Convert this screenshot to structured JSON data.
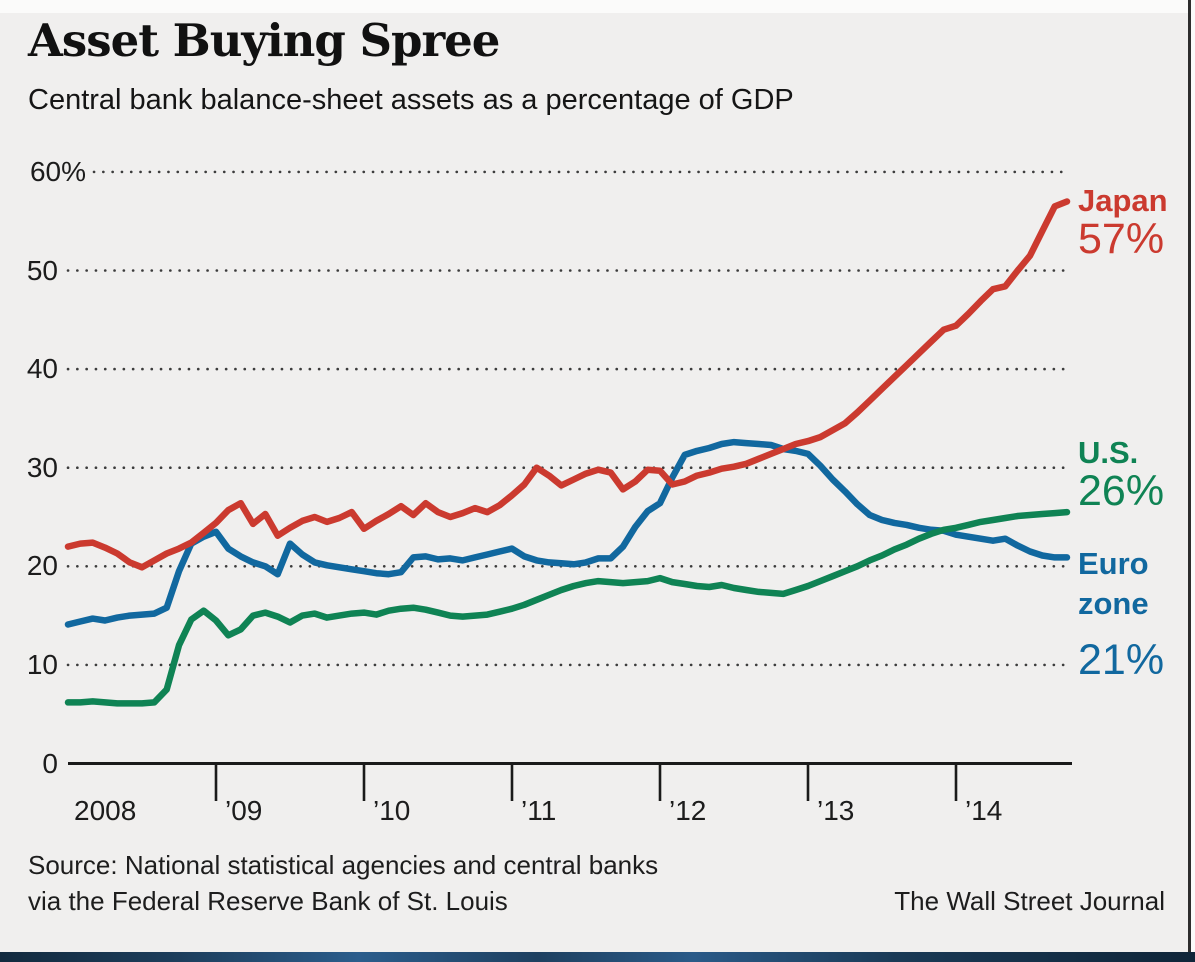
{
  "header": {
    "title": "Asset Buying Spree",
    "subtitle": "Central bank balance-sheet assets as a percentage of GDP"
  },
  "footer": {
    "source_line1": "Source: National statistical agencies and central banks",
    "source_line2": "via the Federal Reserve Bank of St. Louis",
    "credit": "The Wall Street Journal"
  },
  "colors": {
    "japan": "#cb3a2f",
    "us": "#0f8354",
    "eurozone": "#11689f",
    "background": "#f0efee",
    "axis": "#1a1a1a",
    "grid_dots": "#3c3c3c",
    "bottom_bar": "#1d3e5c"
  },
  "chart_data": {
    "type": "line",
    "title": "Asset Buying Spree",
    "subtitle": "Central bank balance-sheet assets as a percentage of GDP",
    "frequency": "monthly",
    "period": "Jan 2008 - Oct 2014",
    "x_tick_labels": [
      "2008",
      "’09",
      "’10",
      "’11",
      "’12",
      "’13",
      "’14"
    ],
    "y_ticks": [
      0,
      10,
      20,
      30,
      40,
      50,
      60
    ],
    "y_tick_labels": [
      "0",
      "10",
      "20",
      "30",
      "40",
      "50",
      "60%"
    ],
    "ylim": [
      0,
      62
    ],
    "grid": "dotted horizontal",
    "legend_position": "right-of-line-ends",
    "series": [
      {
        "name": "Euro zone",
        "end_label": "21%",
        "color": "#11689f",
        "monthly_values": [
          14.1,
          14.4,
          14.7,
          14.5,
          14.8,
          15.0,
          15.1,
          15.2,
          15.8,
          19.5,
          22.3,
          23.0,
          23.5,
          21.8,
          21.0,
          20.4,
          20.0,
          19.2,
          22.3,
          21.2,
          20.4,
          20.1,
          19.9,
          19.7,
          19.5,
          19.3,
          19.2,
          19.4,
          20.9,
          21.0,
          20.7,
          20.8,
          20.6,
          20.9,
          21.2,
          21.5,
          21.8,
          21.0,
          20.6,
          20.4,
          20.3,
          20.2,
          20.4,
          20.8,
          20.8,
          22.0,
          24.0,
          25.6,
          26.4,
          29.0,
          31.3,
          31.7,
          32.0,
          32.4,
          32.6,
          32.5,
          32.4,
          32.3,
          31.9,
          31.7,
          31.4,
          30.2,
          28.8,
          27.6,
          26.3,
          25.2,
          24.7,
          24.4,
          24.2,
          23.9,
          23.7,
          23.6,
          23.2,
          23.0,
          22.8,
          22.6,
          22.8,
          22.1,
          21.5,
          21.1,
          20.9,
          20.9
        ]
      },
      {
        "name": "U.S.",
        "end_label": "26%",
        "color": "#0f8354",
        "monthly_values": [
          6.2,
          6.2,
          6.3,
          6.2,
          6.1,
          6.1,
          6.1,
          6.2,
          7.5,
          12.0,
          14.6,
          15.5,
          14.5,
          13.0,
          13.6,
          15.0,
          15.3,
          14.9,
          14.3,
          15.0,
          15.2,
          14.8,
          15.0,
          15.2,
          15.3,
          15.1,
          15.5,
          15.7,
          15.8,
          15.6,
          15.3,
          15.0,
          14.9,
          15.0,
          15.1,
          15.4,
          15.7,
          16.1,
          16.6,
          17.1,
          17.6,
          18.0,
          18.3,
          18.5,
          18.4,
          18.3,
          18.4,
          18.5,
          18.8,
          18.4,
          18.2,
          18.0,
          17.9,
          18.1,
          17.8,
          17.6,
          17.4,
          17.3,
          17.2,
          17.6,
          18.0,
          18.5,
          19.0,
          19.5,
          20.0,
          20.6,
          21.1,
          21.7,
          22.2,
          22.8,
          23.3,
          23.7,
          23.9,
          24.2,
          24.5,
          24.7,
          24.9,
          25.1,
          25.2,
          25.3,
          25.4,
          25.5
        ]
      },
      {
        "name": "Japan",
        "end_label": "57%",
        "color": "#cb3a2f",
        "monthly_values": [
          22.0,
          22.3,
          22.4,
          21.9,
          21.3,
          20.4,
          19.9,
          20.6,
          21.3,
          21.8,
          22.4,
          23.4,
          24.4,
          25.7,
          26.4,
          24.3,
          25.3,
          23.1,
          23.9,
          24.6,
          25.0,
          24.5,
          24.9,
          25.5,
          23.8,
          24.6,
          25.3,
          26.1,
          25.2,
          26.4,
          25.5,
          25.0,
          25.4,
          25.9,
          25.5,
          26.2,
          27.2,
          28.3,
          30.0,
          29.2,
          28.2,
          28.8,
          29.4,
          29.8,
          29.5,
          27.8,
          28.6,
          29.8,
          29.7,
          28.3,
          28.6,
          29.2,
          29.5,
          29.9,
          30.1,
          30.4,
          30.9,
          31.4,
          31.9,
          32.4,
          32.7,
          33.1,
          33.8,
          34.5,
          35.6,
          36.8,
          38.0,
          39.2,
          40.4,
          41.6,
          42.8,
          44.0,
          44.4,
          45.6,
          46.9,
          48.1,
          48.4,
          50.0,
          51.5,
          54.0,
          56.5,
          57.0
        ]
      }
    ]
  }
}
